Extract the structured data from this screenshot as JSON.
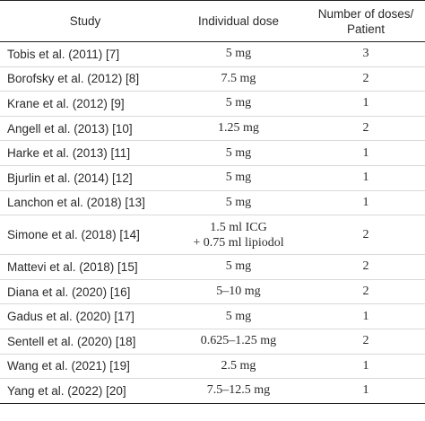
{
  "table": {
    "headers": {
      "study": "Study",
      "dose": "Individual dose",
      "num_line1": "Number of doses/",
      "num_line2": "Patient"
    },
    "rows": [
      {
        "study": "Tobis et al. (2011) [7]",
        "dose": "5 mg",
        "num": "3"
      },
      {
        "study": "Borofsky et al. (2012) [8]",
        "dose": "7.5 mg",
        "num": "2"
      },
      {
        "study": "Krane et al. (2012) [9]",
        "dose": "5 mg",
        "num": "1"
      },
      {
        "study": "Angell et al. (2013) [10]",
        "dose": "1.25 mg",
        "num": "2"
      },
      {
        "study": "Harke et al. (2013) [11]",
        "dose": "5 mg",
        "num": "1"
      },
      {
        "study": "Bjurlin et al. (2014) [12]",
        "dose": "5 mg",
        "num": "1"
      },
      {
        "study": "Lanchon et al. (2018) [13]",
        "dose": "5 mg",
        "num": "1"
      },
      {
        "study": "Simone et al. (2018) [14]",
        "dose_line1": "1.5 ml ICG",
        "dose_line2": "+ 0.75 ml lipiodol",
        "num": "2"
      },
      {
        "study": "Mattevi et al. (2018) [15]",
        "dose": "5 mg",
        "num": "2"
      },
      {
        "study": "Diana et al. (2020) [16]",
        "dose": "5–10 mg",
        "num": "2"
      },
      {
        "study": "Gadus et al. (2020) [17]",
        "dose": "5 mg",
        "num": "1"
      },
      {
        "study": "Sentell et al. (2020) [18]",
        "dose": "0.625–1.25 mg",
        "num": "2"
      },
      {
        "study": "Wang et al. (2021) [19]",
        "dose": "2.5 mg",
        "num": "1"
      },
      {
        "study": "Yang et al. (2022) [20]",
        "dose": "7.5–12.5 mg",
        "num": "1"
      }
    ]
  }
}
